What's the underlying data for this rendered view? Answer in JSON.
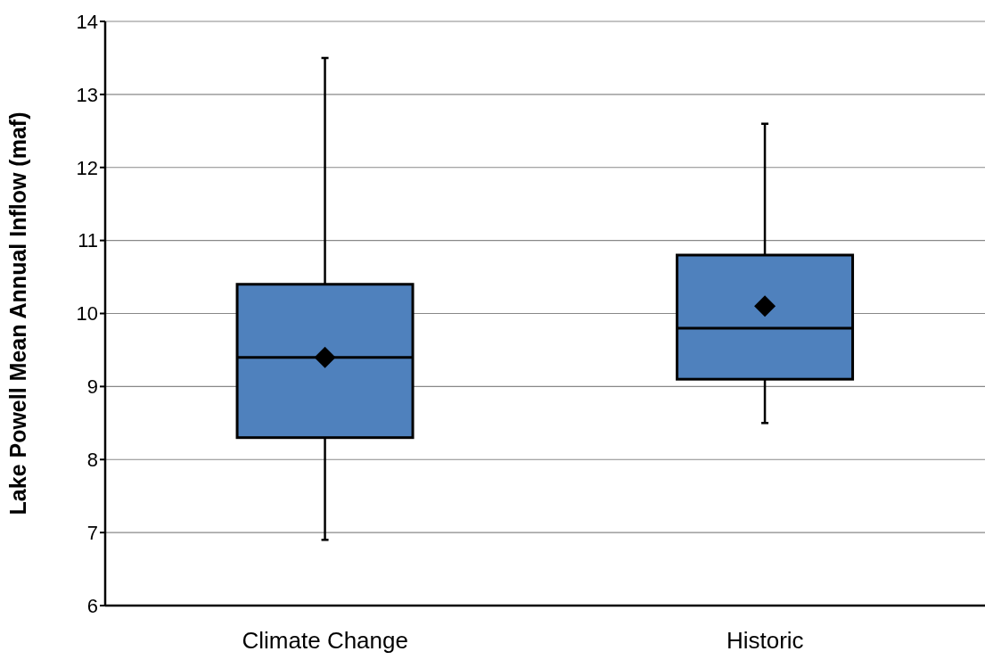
{
  "chart_data": {
    "type": "box",
    "ylabel": "Lake Powell Mean Annual Inflow (maf)",
    "categories": [
      "Climate Change",
      "Historic"
    ],
    "color": "#4f81bd",
    "boxes": [
      {
        "low": 6.9,
        "q1": 8.3,
        "median": 9.4,
        "q3": 10.4,
        "high": 13.5,
        "mean": 9.4
      },
      {
        "low": 8.5,
        "q1": 9.1,
        "median": 9.8,
        "q3": 10.8,
        "high": 12.6,
        "mean": 10.1
      }
    ],
    "ylim": [
      6,
      14
    ],
    "yticks": [
      6,
      7,
      8,
      9,
      10,
      11,
      12,
      13,
      14
    ],
    "grid": "y",
    "marker": "diamond"
  }
}
